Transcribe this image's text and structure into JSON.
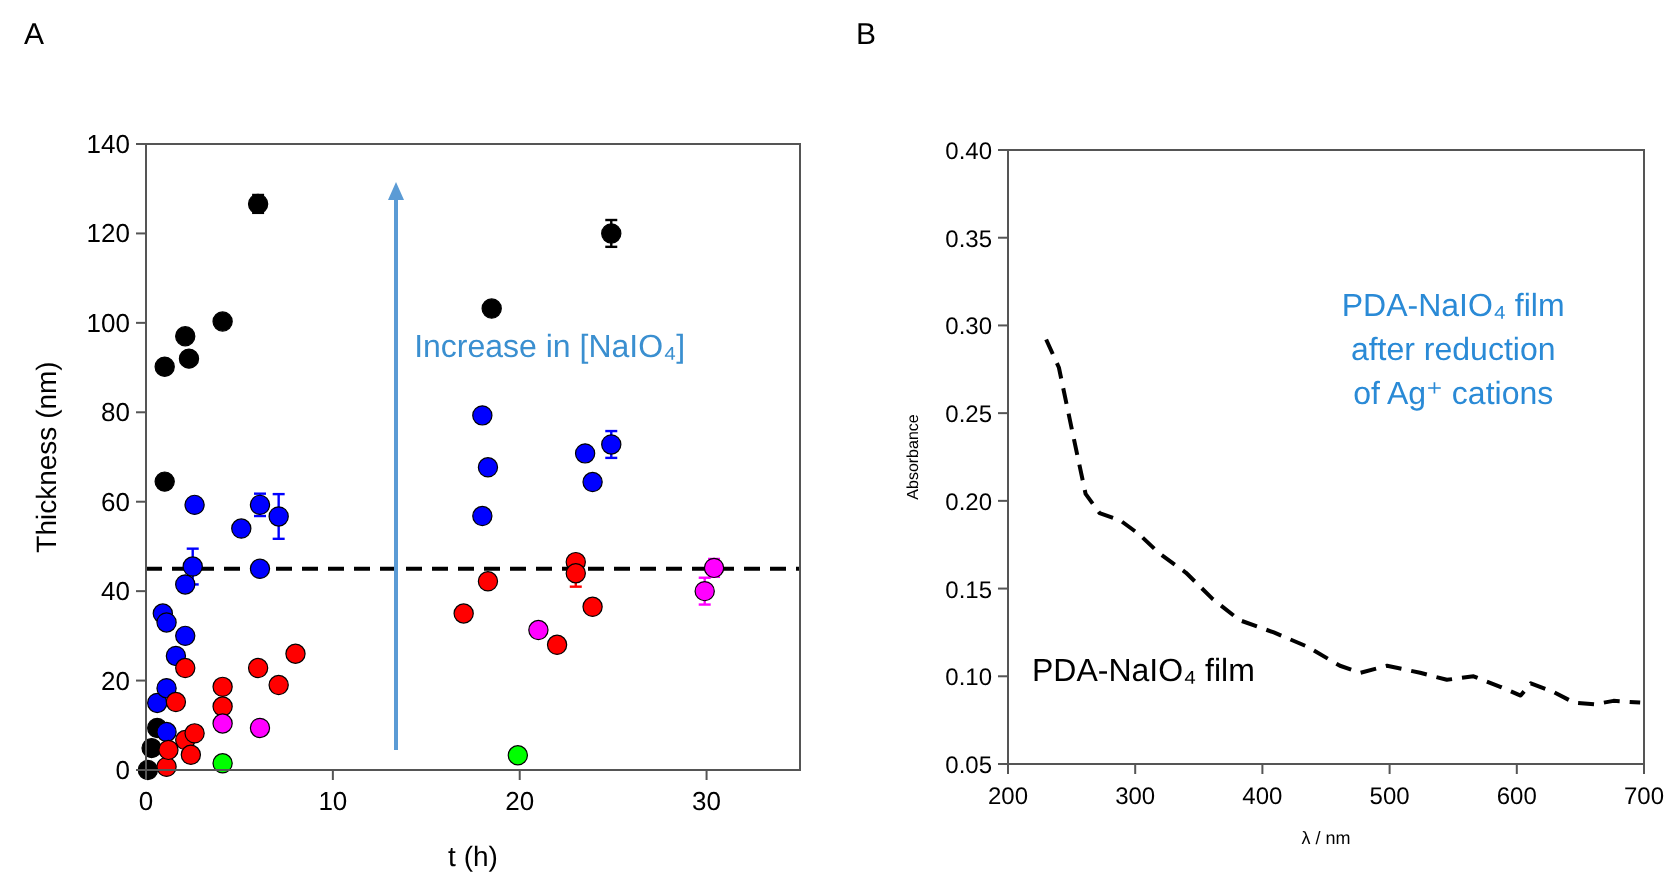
{
  "chart_data": [
    {
      "type": "scatter",
      "title": "A",
      "xlabel": "t (h)",
      "ylabel": "Thickness (nm)",
      "xlim": [
        0,
        35
      ],
      "xticks": [
        0,
        10,
        20,
        30
      ],
      "ylim": [
        0,
        140
      ],
      "yticks": [
        0,
        20,
        40,
        60,
        80,
        100,
        120,
        140
      ],
      "grid": false,
      "marker": "circle",
      "annotations": [
        "Increase in [NaIO₄]"
      ],
      "ref_lines": [
        {
          "axis": "y",
          "value": 45,
          "color": "#000000",
          "line_style": "dashed"
        }
      ],
      "series": [
        {
          "color": "#000000",
          "x": [
            0.1,
            0.3,
            0.6,
            1,
            1,
            2.1,
            2.3,
            4.1,
            6,
            18.5,
            24.9
          ],
          "values": [
            0,
            4.9,
            9.4,
            64.5,
            90.2,
            97,
            92,
            100.3,
            126.6,
            103.2,
            120
          ],
          "errors": [
            null,
            null,
            null,
            null,
            null,
            null,
            null,
            null,
            2,
            null,
            3
          ]
        },
        {
          "color": "#0000ff",
          "x": [
            0.6,
            0.9,
            1.1,
            1.1,
            1.1,
            1.6,
            2.1,
            2.1,
            2.5,
            2.6,
            5.1,
            6.1,
            6.1,
            7.1,
            18,
            18,
            18.3,
            23.5,
            23.9,
            24.9
          ],
          "values": [
            15,
            35,
            33,
            18.3,
            8.5,
            25.5,
            30,
            41.5,
            45.5,
            59.3,
            54,
            59.3,
            45,
            56.7,
            79.3,
            56.8,
            67.7,
            70.8,
            64.4,
            72.8
          ],
          "errors": [
            null,
            null,
            null,
            null,
            null,
            null,
            null,
            null,
            4,
            null,
            null,
            2.5,
            null,
            5,
            null,
            null,
            null,
            null,
            null,
            3
          ]
        },
        {
          "color": "#ff0000",
          "x": [
            1.1,
            1.2,
            1.6,
            2.1,
            2.1,
            2.4,
            2.6,
            4.1,
            4.1,
            6,
            7.1,
            8,
            17,
            18.3,
            22,
            23,
            23,
            23.9
          ],
          "values": [
            0.7,
            4.5,
            15.2,
            22.8,
            6.7,
            3.4,
            8.2,
            14.2,
            18.6,
            22.8,
            19,
            26,
            35,
            42.2,
            28,
            46.5,
            44,
            36.5
          ],
          "errors": [
            null,
            null,
            null,
            null,
            null,
            null,
            null,
            null,
            null,
            null,
            null,
            null,
            null,
            null,
            null,
            null,
            3,
            null
          ]
        },
        {
          "color": "#ff00ff",
          "x": [
            4.1,
            6.1,
            21,
            29.9,
            30.4
          ],
          "values": [
            10.4,
            9.4,
            31.3,
            40,
            45.2
          ],
          "errors": [
            null,
            null,
            null,
            3,
            2
          ]
        },
        {
          "color": "#00ff00",
          "x": [
            4.1,
            19.9
          ],
          "values": [
            1.5,
            3.3
          ]
        }
      ]
    },
    {
      "type": "line",
      "title": "B",
      "xlabel": "λ / nm",
      "ylabel": "Absorbance",
      "xlim": [
        200,
        700
      ],
      "xticks": [
        200,
        300,
        400,
        500,
        600,
        700
      ],
      "ylim": [
        0.05,
        0.4
      ],
      "yticks": [
        {
          "value": 0.05,
          "label": "0.05"
        },
        {
          "value": 0.1,
          "label": "0.10"
        },
        {
          "value": 0.15,
          "label": "0.15"
        },
        {
          "value": 0.2,
          "label": "0.20"
        },
        {
          "value": 0.25,
          "label": "0.25"
        },
        {
          "value": 0.3,
          "label": "0.30"
        },
        {
          "value": 0.35,
          "label": "0.35"
        },
        {
          "value": 0.4,
          "label": "0.40"
        }
      ],
      "grid": false,
      "marker": "none",
      "line_style": "dashed",
      "annotations": [
        "PDA-NaIO₄ film\nafter reduction\nof Ag⁺ cations",
        "PDA-NaIO₄ film"
      ],
      "series": [
        {
          "color": "#000000",
          "x": [
            230,
            240,
            251,
            261,
            272,
            288,
            303,
            319,
            340,
            361,
            382,
            409,
            435,
            461,
            477,
            498,
            524,
            545,
            566,
            587,
            603,
            611,
            629,
            645,
            661,
            676,
            697
          ],
          "values": [
            0.292,
            0.276,
            0.238,
            0.204,
            0.193,
            0.189,
            0.181,
            0.17,
            0.159,
            0.144,
            0.132,
            0.125,
            0.117,
            0.106,
            0.102,
            0.106,
            0.102,
            0.098,
            0.1,
            0.094,
            0.089,
            0.096,
            0.091,
            0.085,
            0.084,
            0.086,
            0.085
          ]
        }
      ]
    }
  ]
}
